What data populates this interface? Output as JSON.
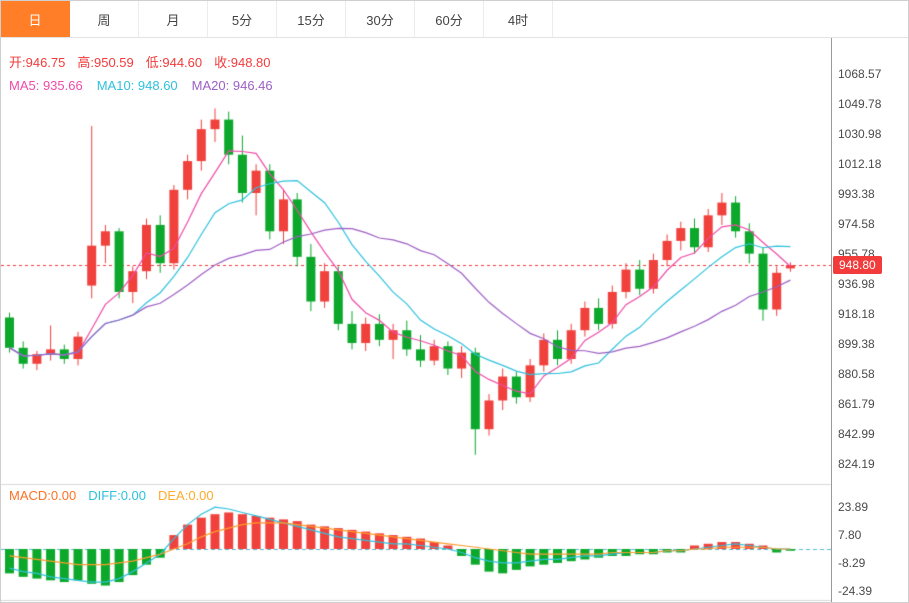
{
  "tabbar": {
    "tabs": [
      {
        "id": "day",
        "label": "日",
        "active": true
      },
      {
        "id": "week",
        "label": "周",
        "active": false
      },
      {
        "id": "month",
        "label": "月",
        "active": false
      },
      {
        "id": "5min",
        "label": "5分",
        "active": false
      },
      {
        "id": "15min",
        "label": "15分",
        "active": false
      },
      {
        "id": "30min",
        "label": "30分",
        "active": false
      },
      {
        "id": "60min",
        "label": "60分",
        "active": false
      },
      {
        "id": "4hour",
        "label": "4时",
        "active": false
      }
    ]
  },
  "ohlc_readout": {
    "open": "开:946.75",
    "high": "高:950.59",
    "low": "低:944.60",
    "close": "收:948.80"
  },
  "ma_readout": {
    "ma5": "MA5: 935.66",
    "ma10": "MA10: 948.60",
    "ma20": "MA20: 946.46"
  },
  "macd_readout": {
    "macd": "MACD:0.00",
    "diff": "DIFF:0.00",
    "dea": "DEA:0.00"
  },
  "price_tag": {
    "value": "948.80"
  },
  "axes": {
    "price_labels": [
      "1068.57",
      "1049.78",
      "1030.98",
      "1012.18",
      "993.38",
      "974.58",
      "955.78",
      "936.98",
      "918.18",
      "899.38",
      "880.58",
      "861.79",
      "842.99",
      "824.19"
    ],
    "macd_labels": [
      "23.89",
      "7.80",
      "-8.29",
      "-24.39"
    ]
  },
  "colors": {
    "up": "#f0413c",
    "down": "#0ca82c",
    "ma5": "#ee4ca8",
    "ma10": "#2fc1dd",
    "ma20": "#9d5fc4",
    "diff": "#2fc1dd",
    "dea": "#ff9b2b",
    "tab_accent": "#ff7e27",
    "price_line": "#f23b3b",
    "zero_line": "#55bdd4",
    "grid": "#d9d9d9"
  },
  "chart_data": [
    {
      "type": "candlestick",
      "title": "Daily K-line",
      "ylim": [
        824.19,
        1068.57
      ],
      "y_tick_labels": [
        "1068.57",
        "1049.78",
        "1030.98",
        "1012.18",
        "993.38",
        "974.58",
        "955.78",
        "936.98",
        "918.18",
        "899.38",
        "880.58",
        "861.79",
        "842.99",
        "824.19"
      ],
      "price_line": 948.8,
      "last_bar": {
        "open": 946.75,
        "high": 950.59,
        "low": 944.6,
        "close": 948.8
      },
      "overlays": [
        {
          "name": "MA5",
          "period": 5,
          "value_shown": 935.66,
          "color_key": "ma5"
        },
        {
          "name": "MA10",
          "period": 10,
          "value_shown": 948.6,
          "color_key": "ma10"
        },
        {
          "name": "MA20",
          "period": 20,
          "value_shown": 946.46,
          "color_key": "ma20"
        }
      ],
      "ohlc": [
        [
          916,
          919,
          894,
          897
        ],
        [
          897,
          901,
          884,
          887
        ],
        [
          887,
          895,
          883,
          893
        ],
        [
          893,
          911,
          889,
          896
        ],
        [
          896,
          899,
          887,
          890
        ],
        [
          890,
          907,
          886,
          904
        ],
        [
          936,
          1036,
          928,
          961
        ],
        [
          961,
          974,
          950,
          970
        ],
        [
          970,
          972,
          928,
          932
        ],
        [
          932,
          948,
          925,
          945
        ],
        [
          945,
          978,
          940,
          974
        ],
        [
          974,
          980,
          944,
          950
        ],
        [
          950,
          999,
          946,
          996
        ],
        [
          996,
          1018,
          990,
          1014
        ],
        [
          1014,
          1040,
          1008,
          1034
        ],
        [
          1034,
          1047,
          1026,
          1040
        ],
        [
          1040,
          1045,
          1012,
          1018
        ],
        [
          1018,
          1030,
          988,
          994
        ],
        [
          994,
          1012,
          980,
          1008
        ],
        [
          1008,
          1012,
          965,
          970
        ],
        [
          970,
          996,
          962,
          990
        ],
        [
          990,
          994,
          948,
          954
        ],
        [
          954,
          962,
          920,
          926
        ],
        [
          926,
          950,
          922,
          945
        ],
        [
          945,
          948,
          908,
          912
        ],
        [
          912,
          920,
          896,
          900
        ],
        [
          900,
          916,
          895,
          912
        ],
        [
          912,
          918,
          898,
          902
        ],
        [
          902,
          912,
          890,
          908
        ],
        [
          908,
          914,
          892,
          896
        ],
        [
          896,
          905,
          885,
          889
        ],
        [
          889,
          902,
          886,
          898
        ],
        [
          898,
          901,
          880,
          884
        ],
        [
          884,
          898,
          878,
          894
        ],
        [
          894,
          897,
          830,
          846
        ],
        [
          846,
          868,
          842,
          864
        ],
        [
          864,
          884,
          858,
          879
        ],
        [
          879,
          882,
          862,
          866
        ],
        [
          866,
          890,
          863,
          886
        ],
        [
          886,
          906,
          882,
          902
        ],
        [
          902,
          908,
          886,
          890
        ],
        [
          890,
          912,
          887,
          908
        ],
        [
          908,
          926,
          904,
          922
        ],
        [
          922,
          928,
          908,
          912
        ],
        [
          912,
          936,
          909,
          932
        ],
        [
          932,
          950,
          928,
          946
        ],
        [
          946,
          952,
          930,
          934
        ],
        [
          934,
          956,
          931,
          952
        ],
        [
          952,
          968,
          948,
          964
        ],
        [
          964,
          976,
          958,
          972
        ],
        [
          972,
          978,
          956,
          960
        ],
        [
          960,
          984,
          957,
          980
        ],
        [
          980,
          994,
          974,
          988
        ],
        [
          988,
          992,
          966,
          970
        ],
        [
          970,
          975,
          950,
          956
        ],
        [
          956,
          960,
          914,
          921
        ],
        [
          921,
          948,
          917,
          944
        ],
        [
          946.75,
          950.59,
          944.6,
          948.8
        ]
      ]
    },
    {
      "type": "bar",
      "title": "MACD",
      "ylim": [
        -32,
        32
      ],
      "y_tick_labels": [
        "23.89",
        "7.80",
        "-8.29",
        "-24.39"
      ],
      "hist": [
        -14,
        -16,
        -17,
        -18,
        -19,
        -18,
        -20,
        -21,
        -19,
        -15,
        -9,
        -5,
        8,
        14,
        18,
        20,
        21,
        20,
        19,
        18,
        17,
        16,
        14,
        13,
        12,
        11,
        10,
        9,
        8,
        7,
        6,
        4,
        2,
        -4,
        -9,
        -13,
        -14,
        -12,
        -10,
        -9,
        -8,
        -7,
        -6,
        -5,
        -4,
        -4,
        -3,
        -3,
        -2,
        -2,
        2,
        3,
        4,
        4,
        3,
        2,
        -2,
        -1
      ],
      "lines": [
        {
          "name": "DIFF",
          "color_key": "diff",
          "values": [
            -11,
            -13,
            -14,
            -16,
            -17,
            -18,
            -19,
            -19,
            -17,
            -13,
            -8,
            -3,
            6,
            14,
            20,
            24,
            23,
            21,
            19,
            17,
            15,
            13,
            11,
            9,
            7,
            6,
            5,
            4,
            3,
            3,
            2,
            1,
            0,
            -2,
            -5,
            -7,
            -8,
            -8,
            -7,
            -6,
            -6,
            -5,
            -4,
            -4,
            -3,
            -2,
            -2,
            -2,
            -1,
            -1,
            0,
            1,
            2,
            3,
            2,
            1,
            0,
            0
          ]
        },
        {
          "name": "DEA",
          "color_key": "dea",
          "values": [
            -4,
            -5,
            -6,
            -7,
            -8,
            -9,
            -9,
            -9,
            -8,
            -7,
            -5,
            -3,
            0,
            3,
            7,
            10,
            12,
            14,
            15,
            15,
            15,
            14,
            13,
            12,
            11,
            10,
            9,
            8,
            7,
            6,
            5,
            4,
            3,
            2,
            1,
            0,
            -1,
            -2,
            -3,
            -3,
            -3,
            -3,
            -3,
            -3,
            -2,
            -2,
            -2,
            -2,
            -1,
            -1,
            0,
            0,
            1,
            1,
            1,
            1,
            0,
            0
          ]
        }
      ]
    }
  ]
}
